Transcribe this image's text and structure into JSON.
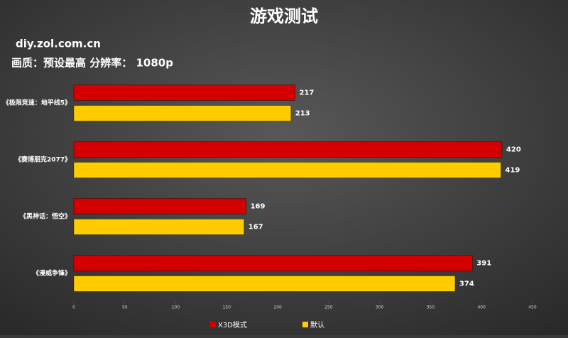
{
  "chart_data": {
    "type": "hbar",
    "title": "游戏测试",
    "watermark": "diy.zol.com.cn",
    "subtitle": "画质：预设最高    分辨率： 1080p",
    "categories": [
      "《极限竞速：地平线5》",
      "《赛博朋克2077》",
      "《黑神话：悟空》",
      "《漫威争锋》"
    ],
    "series": [
      {
        "name": "X3D模式",
        "color": "#d40000",
        "values": [
          217,
          420,
          169,
          391
        ]
      },
      {
        "name": "默认",
        "color": "#ffcc00",
        "values": [
          213,
          419,
          167,
          374
        ]
      }
    ],
    "xlim": [
      0,
      450
    ],
    "xticks": [
      0,
      50,
      100,
      150,
      200,
      250,
      300,
      350,
      400,
      450
    ],
    "legend": "bottom"
  }
}
